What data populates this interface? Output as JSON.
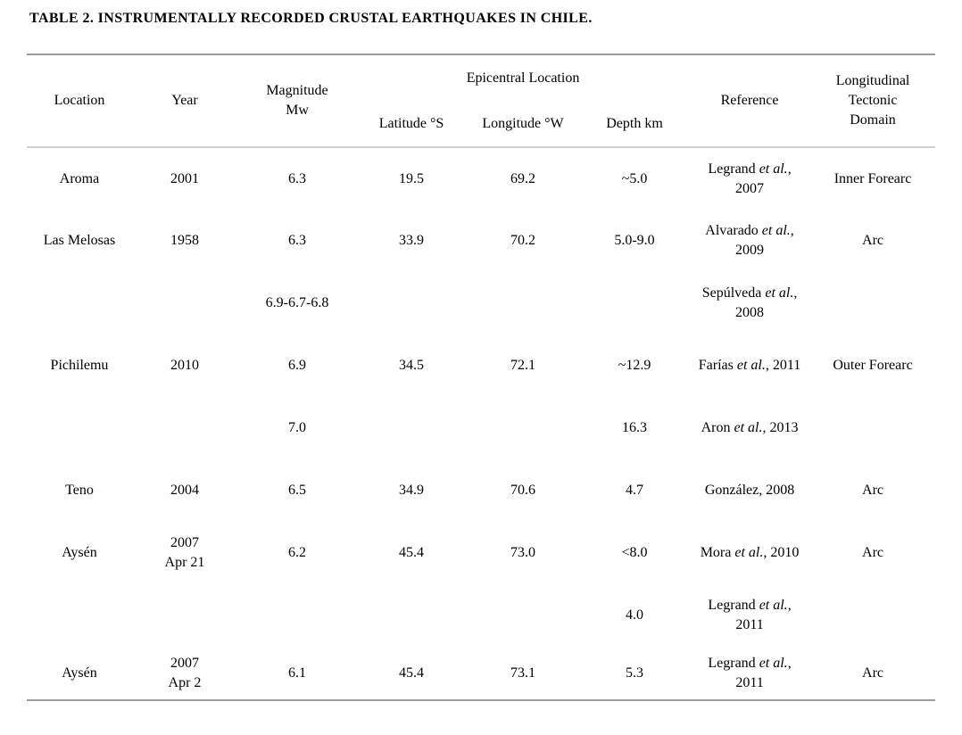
{
  "title": "TABLE 2. INSTRUMENTALLY RECORDED CRUSTAL EARTHQUAKES IN CHILE.",
  "colors": {
    "text": "#000000",
    "rule_outer": "#9b9b9b",
    "rule_header": "#cfcfcf",
    "background": "#ffffff"
  },
  "table": {
    "headers": {
      "location": "Location",
      "year": "Year",
      "magnitude": "Magnitude\nMw",
      "epicentral": "Epicentral Location",
      "latitude": "Latitude °S",
      "longitude": "Longitude °W",
      "depth": "Depth km",
      "reference": "Reference",
      "domain": "Longitudinal\nTectonic\nDomain"
    },
    "rows": [
      {
        "location": "Aroma",
        "year": "2001",
        "magnitude": "6.3",
        "latitude": "19.5",
        "longitude": "69.2",
        "depth": "~5.0",
        "ref_pre": "Legrand ",
        "ref_italic": "et al.",
        "ref_post": ", 2007",
        "domain": "Inner Forearc"
      },
      {
        "location": "Las Melosas",
        "year": "1958",
        "magnitude": "6.3",
        "latitude": "33.9",
        "longitude": "70.2",
        "depth": "5.0-9.0",
        "ref_pre": "Alvarado ",
        "ref_italic": "et al.",
        "ref_post": ", 2009",
        "domain": "Arc"
      },
      {
        "location": "",
        "year": "",
        "magnitude": "6.9-6.7-6.8",
        "latitude": "",
        "longitude": "",
        "depth": "",
        "ref_pre": "Sepúlveda ",
        "ref_italic": "et al.",
        "ref_post": ", 2008",
        "domain": ""
      },
      {
        "location": "Pichilemu",
        "year": "2010",
        "magnitude": "6.9",
        "latitude": "34.5",
        "longitude": "72.1",
        "depth": "~12.9",
        "ref_pre": "Farías ",
        "ref_italic": "et al.",
        "ref_post": ", 2011",
        "domain": "Outer Forearc"
      },
      {
        "location": "",
        "year": "",
        "magnitude": "7.0",
        "latitude": "",
        "longitude": "",
        "depth": "16.3",
        "ref_pre": "Aron ",
        "ref_italic": "et al.",
        "ref_post": ", 2013",
        "domain": ""
      },
      {
        "location": "Teno",
        "year": "2004",
        "magnitude": "6.5",
        "latitude": "34.9",
        "longitude": "70.6",
        "depth": "4.7",
        "ref_pre": "González, 2008",
        "ref_italic": "",
        "ref_post": "",
        "domain": "Arc"
      },
      {
        "location": "Aysén",
        "year": "2007\nApr 21",
        "magnitude": "6.2",
        "latitude": "45.4",
        "longitude": "73.0",
        "depth": "<8.0",
        "ref_pre": "Mora ",
        "ref_italic": "et al.",
        "ref_post": ", 2010",
        "domain": "Arc"
      },
      {
        "location": "",
        "year": "",
        "magnitude": "",
        "latitude": "",
        "longitude": "",
        "depth": "4.0",
        "ref_pre": "Legrand ",
        "ref_italic": "et al.",
        "ref_post": ", 2011",
        "domain": ""
      },
      {
        "location": "Aysén",
        "year": "2007\nApr 2",
        "magnitude": "6.1",
        "latitude": "45.4",
        "longitude": "73.1",
        "depth": "5.3",
        "ref_pre": "Legrand ",
        "ref_italic": "et al.",
        "ref_post": ", 2011",
        "domain": "Arc"
      }
    ]
  }
}
